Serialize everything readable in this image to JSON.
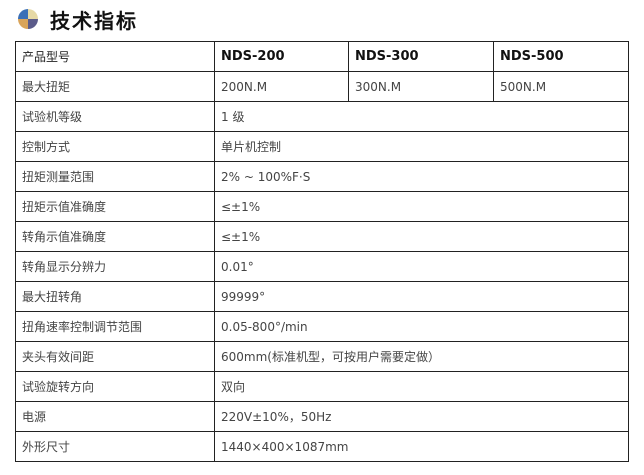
{
  "title": "技术指标",
  "header": [
    "产品型号",
    "NDS-200",
    "NDS-300",
    "NDS-500"
  ],
  "torque_row": [
    "最大扭矩",
    "200N.M",
    "300N.M",
    "500N.M"
  ],
  "rows": [
    {
      "label": "试验机等级",
      "value": "1 级"
    },
    {
      "label": "控制方式",
      "value": "单片机控制"
    },
    {
      "label": "扭矩测量范围",
      "value": "2% ~ 100%F·S"
    },
    {
      "label": "扭矩示值准确度",
      "value": "≤±1%"
    },
    {
      "label": "转角示值准确度",
      "value": "≤±1%"
    },
    {
      "label": "转角显示分辨力",
      "value": "0.01°"
    },
    {
      "label": "最大扭转角",
      "value": "99999°"
    },
    {
      "label": "扭角速率控制调节范围",
      "value": "0.05-800°/min"
    },
    {
      "label": "夹头有效间距",
      "value": "600mm(标准机型，可按用户需要定做）"
    },
    {
      "label": "试验旋转方向",
      "value": "双向"
    },
    {
      "label": "电源",
      "value": "220V±10%，50Hz"
    },
    {
      "label": "外形尺寸",
      "value": "1440×400×1087mm"
    }
  ]
}
